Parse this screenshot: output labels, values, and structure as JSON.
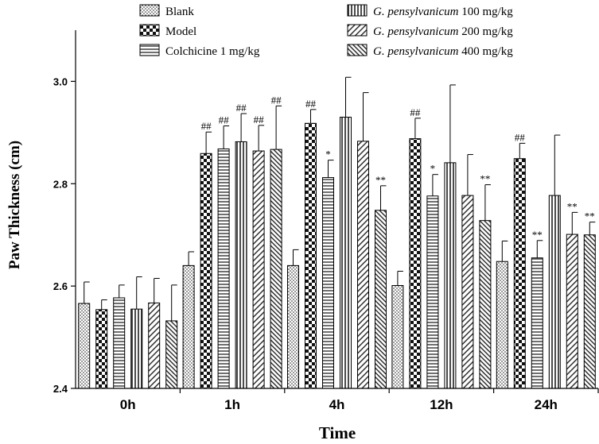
{
  "chart_data": {
    "type": "bar",
    "xlabel": "Time",
    "ylabel": "Paw Thickness (cm)",
    "ylim": [
      2.4,
      3.1
    ],
    "yticks": [
      "2.4",
      "2.6",
      "2.8",
      "3.0"
    ],
    "categories": [
      "0h",
      "1h",
      "4h",
      "12h",
      "24h"
    ],
    "grid": false,
    "legend_placement": "top",
    "series": [
      {
        "legend": {
          "prefix": "",
          "italic": "",
          "suffix": "Blank"
        },
        "pattern": "dots",
        "values": [
          2.566,
          2.64,
          2.64,
          2.601,
          2.648
        ],
        "errors": [
          0.042,
          0.027,
          0.031,
          0.028,
          0.04
        ],
        "sig": [
          "",
          "",
          "",
          "",
          ""
        ]
      },
      {
        "legend": {
          "prefix": "",
          "italic": "",
          "suffix": "Model"
        },
        "pattern": "checker",
        "values": [
          2.554,
          2.859,
          2.918,
          2.888,
          2.849
        ],
        "errors": [
          0.019,
          0.042,
          0.027,
          0.04,
          0.03
        ],
        "sig": [
          "",
          "##",
          "##",
          "##",
          "##"
        ]
      },
      {
        "legend": {
          "prefix": "",
          "italic": "",
          "suffix": "Colchicine 1 mg/kg"
        },
        "pattern": "hlines",
        "values": [
          2.577,
          2.868,
          2.812,
          2.776,
          2.655
        ],
        "errors": [
          0.025,
          0.045,
          0.034,
          0.042,
          0.034
        ],
        "sig": [
          "",
          "##",
          "*",
          "*",
          "**"
        ]
      },
      {
        "legend": {
          "prefix": "",
          "italic": "G. pensylvanicum",
          "suffix": " 100 mg/kg"
        },
        "pattern": "vlines",
        "values": [
          2.555,
          2.882,
          2.93,
          2.841,
          2.777
        ],
        "errors": [
          0.063,
          0.055,
          0.078,
          0.152,
          0.118
        ],
        "sig": [
          "",
          "##",
          "",
          "",
          ""
        ]
      },
      {
        "legend": {
          "prefix": "",
          "italic": "G. pensylvanicum",
          "suffix": " 200 mg/kg"
        },
        "pattern": "diag",
        "values": [
          2.567,
          2.864,
          2.883,
          2.777,
          2.701
        ],
        "errors": [
          0.048,
          0.05,
          0.095,
          0.08,
          0.043
        ],
        "sig": [
          "",
          "##",
          "",
          "",
          "**"
        ]
      },
      {
        "legend": {
          "prefix": "",
          "italic": "G. pensylvanicum",
          "suffix": " 400 mg/kg"
        },
        "pattern": "diag2",
        "values": [
          2.532,
          2.867,
          2.748,
          2.728,
          2.7
        ],
        "errors": [
          0.07,
          0.085,
          0.048,
          0.07,
          0.025
        ],
        "sig": [
          "",
          "##",
          "**",
          "**",
          "**"
        ]
      }
    ]
  }
}
